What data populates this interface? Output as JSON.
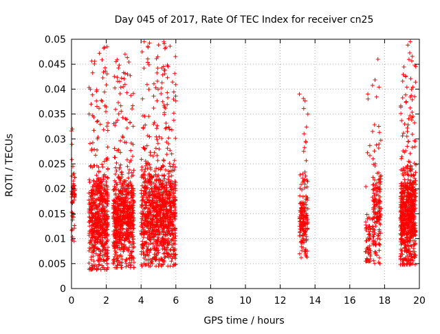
{
  "chart_data": {
    "type": "scatter",
    "title": "Day 045 of 2017, Rate Of TEC Index for receiver cn25",
    "xlabel": "GPS time / hours",
    "ylabel": "ROTI / TECUs",
    "xlim": [
      0,
      20
    ],
    "ylim": [
      0,
      0.05
    ],
    "x_ticks": [
      0,
      2,
      4,
      6,
      8,
      10,
      12,
      14,
      16,
      18,
      20
    ],
    "x_tick_labels": [
      "0",
      "2",
      "4",
      "6",
      "8",
      "10",
      "12",
      "14",
      "16",
      "18",
      "20"
    ],
    "y_ticks": [
      0,
      0.005,
      0.01,
      0.015,
      0.02,
      0.025,
      0.03,
      0.035,
      0.04,
      0.045,
      0.05
    ],
    "y_tick_labels": [
      "0",
      "0.005",
      "0.01",
      "0.015",
      "0.02",
      "0.025",
      "0.03",
      "0.035",
      "0.04",
      "0.045",
      "0.05"
    ],
    "grid": true,
    "marker": "+",
    "color": "#ff0000",
    "clusters": [
      {
        "x_start": 0.0,
        "x_end": 0.2,
        "y_min": 0.0095,
        "y_max": 0.032,
        "y_center": 0.019,
        "count": 60
      },
      {
        "x_start": 1.0,
        "x_end": 2.1,
        "y_min": 0.0038,
        "y_max": 0.0485,
        "y_center": 0.014,
        "count": 600
      },
      {
        "x_start": 2.4,
        "x_end": 3.6,
        "y_min": 0.0042,
        "y_max": 0.047,
        "y_center": 0.014,
        "count": 650
      },
      {
        "x_start": 4.0,
        "x_end": 6.0,
        "y_min": 0.0045,
        "y_max": 0.0495,
        "y_center": 0.015,
        "count": 1000
      },
      {
        "x_start": 13.1,
        "x_end": 13.6,
        "y_min": 0.0062,
        "y_max": 0.039,
        "y_center": 0.014,
        "count": 160
      },
      {
        "x_start": 16.9,
        "x_end": 17.2,
        "y_min": 0.0055,
        "y_max": 0.039,
        "y_center": 0.009,
        "count": 60
      },
      {
        "x_start": 17.3,
        "x_end": 17.8,
        "y_min": 0.005,
        "y_max": 0.046,
        "y_center": 0.015,
        "count": 160
      },
      {
        "x_start": 18.9,
        "x_end": 19.8,
        "y_min": 0.0048,
        "y_max": 0.0495,
        "y_center": 0.015,
        "count": 650
      }
    ]
  }
}
